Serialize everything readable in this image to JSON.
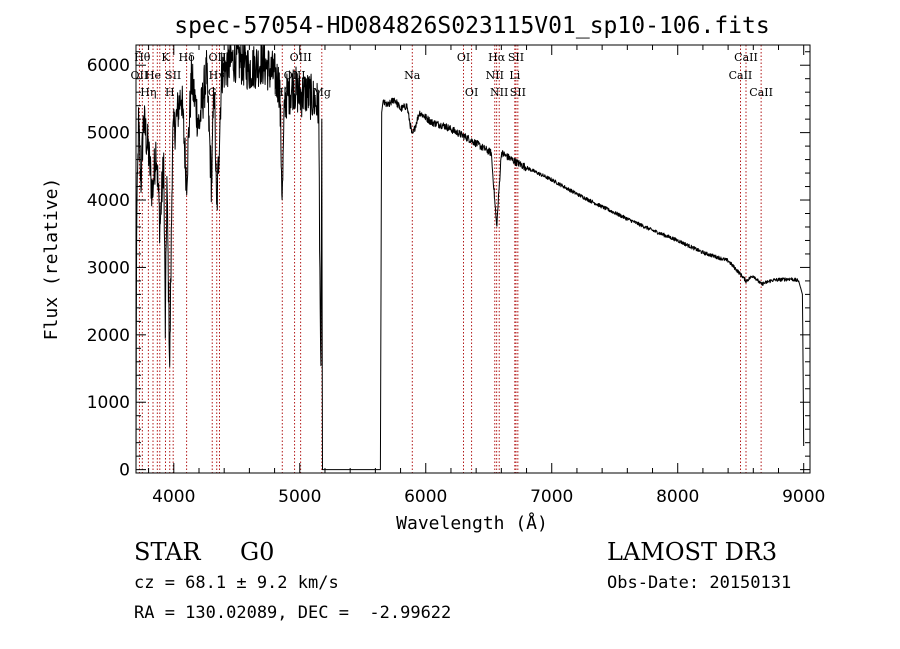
{
  "chart_data": {
    "type": "line",
    "title": "spec-57054-HD084826S023115V01_sp10-106.fits",
    "xlabel": "Wavelength (Å)",
    "ylabel": "Flux (relative)",
    "xlim": [
      3700,
      9050
    ],
    "ylim": [
      -50,
      6300
    ],
    "xticks": [
      4000,
      5000,
      6000,
      7000,
      8000,
      9000
    ],
    "yticks": [
      0,
      1000,
      2000,
      3000,
      4000,
      5000,
      6000
    ],
    "line_color": "#000000",
    "marker_color": "#aa0000",
    "spectrum_anchors": {
      "x": [
        3700,
        3705,
        3720,
        3740,
        3760,
        3800,
        3830,
        3860,
        3890,
        3920,
        3933,
        3945,
        3968,
        3990,
        4020,
        4060,
        4101,
        4140,
        4200,
        4260,
        4300,
        4320,
        4340,
        4380,
        4450,
        4500,
        4600,
        4700,
        4800,
        4840,
        4861,
        4880,
        4950,
        5000,
        5050,
        5100,
        5150,
        5167,
        5175,
        5180,
        5640,
        5650,
        5660,
        5700,
        5750,
        5800,
        5850,
        5893,
        5950,
        6050,
        6150,
        6250,
        6350,
        6450,
        6520,
        6563,
        6600,
        6700,
        6800,
        7000,
        7200,
        7400,
        7600,
        7800,
        8000,
        8200,
        8400,
        8498,
        8542,
        8600,
        8662,
        8750,
        8900,
        8960,
        8990,
        9000
      ],
      "y": [
        0,
        3500,
        5100,
        4300,
        5200,
        4700,
        4100,
        4800,
        3600,
        4600,
        2000,
        4300,
        1500,
        4900,
        5200,
        5600,
        4300,
        5800,
        5100,
        5900,
        4200,
        5800,
        3800,
        5900,
        6050,
        6100,
        5950,
        6050,
        5850,
        5700,
        4000,
        5500,
        5700,
        5550,
        5600,
        5500,
        5400,
        1300,
        5200,
        0,
        0,
        5300,
        5450,
        5400,
        5500,
        5350,
        5400,
        4950,
        5300,
        5150,
        5100,
        5000,
        4900,
        4780,
        4700,
        3600,
        4700,
        4580,
        4480,
        4300,
        4090,
        3900,
        3720,
        3550,
        3400,
        3220,
        3100,
        2900,
        2800,
        2880,
        2750,
        2810,
        2830,
        2800,
        2600,
        350
      ]
    },
    "markers": [
      {
        "wl": 3727,
        "label": "OII",
        "row": 2
      },
      {
        "wl": 3750,
        "label": "Hθ",
        "row": 1
      },
      {
        "wl": 3798,
        "label": "Hη",
        "row": 3
      },
      {
        "wl": 3835,
        "label": "He",
        "row": 2
      },
      {
        "wl": 3869,
        "label": "",
        "row": 0
      },
      {
        "wl": 3889,
        "label": "",
        "row": 0
      },
      {
        "wl": 3934,
        "label": "K",
        "row": 1
      },
      {
        "wl": 3968,
        "label": "H",
        "row": 3
      },
      {
        "wl": 3995,
        "label": "SII",
        "row": 2
      },
      {
        "wl": 4102,
        "label": "Hδ",
        "row": 1
      },
      {
        "wl": 4305,
        "label": "G",
        "row": 3
      },
      {
        "wl": 4341,
        "label": "Hγ",
        "row": 2
      },
      {
        "wl": 4363,
        "label": "OIII",
        "row": 1
      },
      {
        "wl": 4861,
        "label": "Hβ",
        "row": 3
      },
      {
        "wl": 4959,
        "label": "OIII",
        "row": 2
      },
      {
        "wl": 5007,
        "label": "OIII",
        "row": 1
      },
      {
        "wl": 5175,
        "label": "Mg",
        "row": 3
      },
      {
        "wl": 5893,
        "label": "Na",
        "row": 2
      },
      {
        "wl": 6300,
        "label": "OI",
        "row": 1
      },
      {
        "wl": 6364,
        "label": "OI",
        "row": 3
      },
      {
        "wl": 6548,
        "label": "NII",
        "row": 2
      },
      {
        "wl": 6563,
        "label": "Hα",
        "row": 1
      },
      {
        "wl": 6583,
        "label": "NII",
        "row": 3
      },
      {
        "wl": 6707,
        "label": "Li",
        "row": 2
      },
      {
        "wl": 6716,
        "label": "SII",
        "row": 1
      },
      {
        "wl": 6731,
        "label": "SII",
        "row": 3
      },
      {
        "wl": 8498,
        "label": "CaII",
        "row": 2
      },
      {
        "wl": 8542,
        "label": "CaII",
        "row": 1
      },
      {
        "wl": 8662,
        "label": "CaII",
        "row": 3
      }
    ]
  },
  "info": {
    "object_class": "STAR",
    "subclass": "G0",
    "survey": "LAMOST DR3",
    "redshift": "cz = 68.1 ± 9.2 km/s",
    "obs_date": "Obs-Date: 20150131",
    "coords": "RA = 130.02089, DEC =  -2.99622"
  }
}
